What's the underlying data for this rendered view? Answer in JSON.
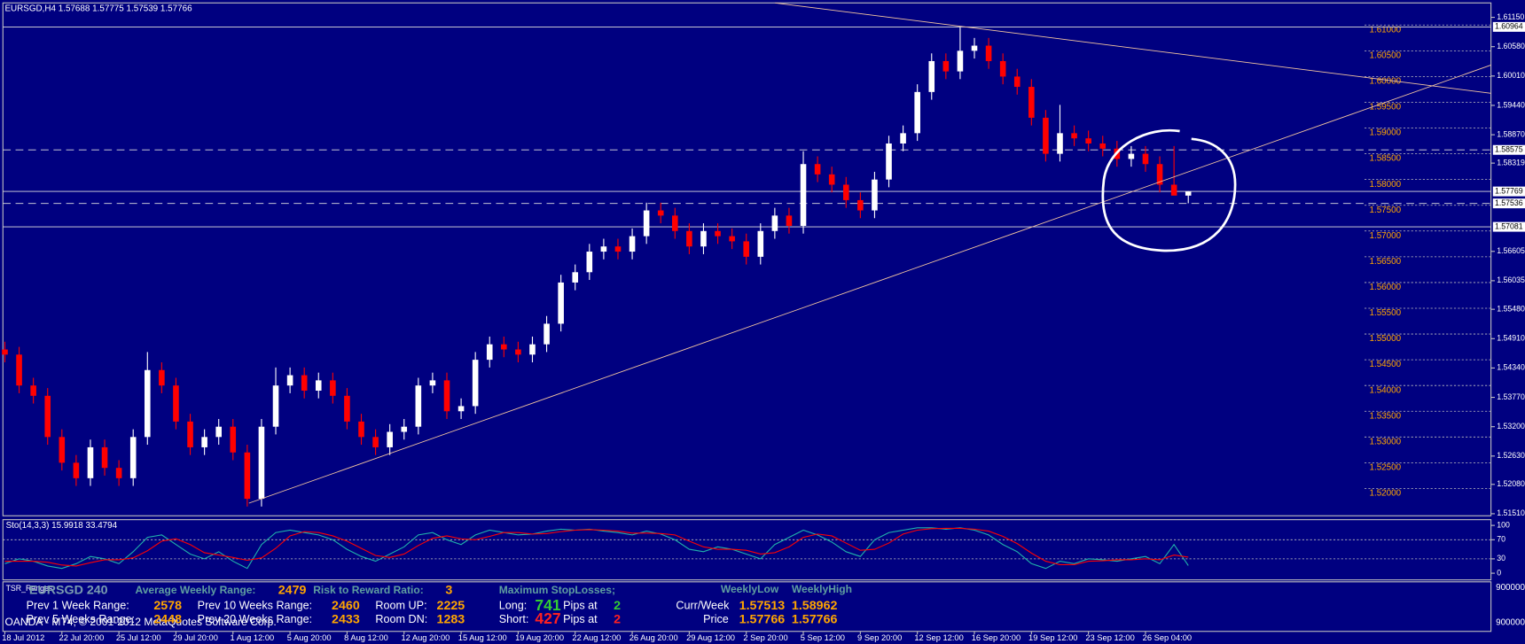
{
  "chart_data": [
    {
      "type": "candlestick",
      "title": "EURSGD,H4  1.57688 1.57775 1.57539 1.57766",
      "up_color": "#ffffff",
      "down_color": "#ff0000",
      "categories": [
        "18 Jul 2012",
        null,
        null,
        null,
        "22 Jul 20:00",
        null,
        null,
        null,
        "25 Jul 12:00",
        null,
        null,
        null,
        "29 Jul 20:00",
        null,
        null,
        null,
        "1 Aug 12:00",
        null,
        null,
        null,
        "5 Aug 20:00",
        null,
        null,
        null,
        "8 Aug 12:00",
        null,
        null,
        null,
        "12 Aug 20:00",
        null,
        null,
        null,
        "15 Aug 12:00",
        null,
        null,
        null,
        "19 Aug 20:00",
        null,
        null,
        null,
        "22 Aug 12:00",
        null,
        null,
        null,
        "26 Aug 20:00",
        null,
        null,
        null,
        "29 Aug 12:00",
        null,
        null,
        null,
        "2 Sep 20:00",
        null,
        null,
        null,
        "5 Sep 12:00",
        null,
        null,
        null,
        "9 Sep 20:00",
        null,
        null,
        null,
        "12 Sep 12:00",
        null,
        null,
        null,
        "16 Sep 20:00",
        null,
        null,
        null,
        "19 Sep 12:00",
        null,
        null,
        null,
        "23 Sep 12:00",
        null,
        null,
        null,
        "26 Sep 04:00",
        null,
        null,
        null
      ],
      "ohlc": [
        [
          1.547,
          1.5485,
          1.5445,
          1.546
        ],
        [
          1.546,
          1.5475,
          1.5385,
          1.54
        ],
        [
          1.54,
          1.5415,
          1.5365,
          1.538
        ],
        [
          1.538,
          1.5395,
          1.5285,
          1.53
        ],
        [
          1.53,
          1.5315,
          1.5235,
          1.525
        ],
        [
          1.525,
          1.5265,
          1.5205,
          1.522
        ],
        [
          1.522,
          1.5295,
          1.5205,
          1.528
        ],
        [
          1.528,
          1.5295,
          1.5225,
          1.524
        ],
        [
          1.524,
          1.5255,
          1.5205,
          1.522
        ],
        [
          1.522,
          1.5315,
          1.5205,
          1.53
        ],
        [
          1.53,
          1.5465,
          1.5285,
          1.543
        ],
        [
          1.543,
          1.5445,
          1.5385,
          1.54
        ],
        [
          1.54,
          1.5415,
          1.5315,
          1.533
        ],
        [
          1.533,
          1.5345,
          1.5265,
          1.528
        ],
        [
          1.528,
          1.5315,
          1.5265,
          1.53
        ],
        [
          1.53,
          1.5335,
          1.5285,
          1.532
        ],
        [
          1.532,
          1.5335,
          1.5255,
          1.527
        ],
        [
          1.527,
          1.5285,
          1.5165,
          1.518
        ],
        [
          1.518,
          1.5335,
          1.5165,
          1.532
        ],
        [
          1.532,
          1.5435,
          1.5305,
          1.54
        ],
        [
          1.54,
          1.5435,
          1.5385,
          1.542
        ],
        [
          1.542,
          1.5435,
          1.5375,
          1.539
        ],
        [
          1.539,
          1.5425,
          1.5375,
          1.541
        ],
        [
          1.541,
          1.5425,
          1.5365,
          1.538
        ],
        [
          1.538,
          1.5395,
          1.5315,
          1.533
        ],
        [
          1.533,
          1.5345,
          1.5285,
          1.53
        ],
        [
          1.53,
          1.5315,
          1.5265,
          1.528
        ],
        [
          1.528,
          1.5325,
          1.5265,
          1.531
        ],
        [
          1.531,
          1.5335,
          1.5295,
          1.532
        ],
        [
          1.532,
          1.5415,
          1.5305,
          1.54
        ],
        [
          1.54,
          1.5425,
          1.5385,
          1.541
        ],
        [
          1.541,
          1.5425,
          1.5335,
          1.535
        ],
        [
          1.535,
          1.5375,
          1.5335,
          1.536
        ],
        [
          1.536,
          1.5465,
          1.5345,
          1.545
        ],
        [
          1.545,
          1.5495,
          1.5435,
          1.548
        ],
        [
          1.548,
          1.5495,
          1.5455,
          1.547
        ],
        [
          1.547,
          1.5485,
          1.5445,
          1.546
        ],
        [
          1.546,
          1.5495,
          1.5445,
          1.548
        ],
        [
          1.548,
          1.5535,
          1.5465,
          1.552
        ],
        [
          1.552,
          1.5615,
          1.5505,
          1.56
        ],
        [
          1.56,
          1.5635,
          1.5585,
          1.562
        ],
        [
          1.562,
          1.5675,
          1.5605,
          1.566
        ],
        [
          1.566,
          1.5685,
          1.5645,
          1.567
        ],
        [
          1.567,
          1.5685,
          1.5645,
          1.566
        ],
        [
          1.566,
          1.5705,
          1.5645,
          1.569
        ],
        [
          1.569,
          1.5755,
          1.5675,
          1.574
        ],
        [
          1.574,
          1.5755,
          1.5715,
          1.573
        ],
        [
          1.573,
          1.5745,
          1.5685,
          1.57
        ],
        [
          1.57,
          1.5715,
          1.5655,
          1.567
        ],
        [
          1.567,
          1.5715,
          1.5655,
          1.57
        ],
        [
          1.57,
          1.5715,
          1.5675,
          1.569
        ],
        [
          1.569,
          1.5705,
          1.5665,
          1.568
        ],
        [
          1.568,
          1.5695,
          1.5635,
          1.565
        ],
        [
          1.565,
          1.5715,
          1.5635,
          1.57
        ],
        [
          1.57,
          1.5745,
          1.5685,
          1.573
        ],
        [
          1.573,
          1.5745,
          1.5695,
          1.571
        ],
        [
          1.571,
          1.5855,
          1.5695,
          1.583
        ],
        [
          1.583,
          1.5845,
          1.5795,
          1.581
        ],
        [
          1.581,
          1.5825,
          1.5775,
          1.579
        ],
        [
          1.579,
          1.5805,
          1.5745,
          1.576
        ],
        [
          1.576,
          1.5775,
          1.5725,
          1.574
        ],
        [
          1.574,
          1.5815,
          1.5725,
          1.58
        ],
        [
          1.58,
          1.5885,
          1.5785,
          1.587
        ],
        [
          1.587,
          1.5905,
          1.5855,
          1.589
        ],
        [
          1.589,
          1.5985,
          1.5875,
          1.597
        ],
        [
          1.597,
          1.6045,
          1.5955,
          1.603
        ],
        [
          1.603,
          1.6045,
          1.5995,
          1.601
        ],
        [
          1.601,
          1.6096,
          1.5995,
          1.605
        ],
        [
          1.605,
          1.6075,
          1.6035,
          1.606
        ],
        [
          1.606,
          1.6075,
          1.6015,
          1.603
        ],
        [
          1.603,
          1.6045,
          1.5985,
          1.6
        ],
        [
          1.6,
          1.6015,
          1.5965,
          1.598
        ],
        [
          1.598,
          1.5995,
          1.5905,
          1.592
        ],
        [
          1.592,
          1.5935,
          1.5835,
          1.585
        ],
        [
          1.585,
          1.5945,
          1.5835,
          1.589
        ],
        [
          1.589,
          1.5905,
          1.5865,
          1.588
        ],
        [
          1.588,
          1.5895,
          1.5855,
          1.587
        ],
        [
          1.587,
          1.5885,
          1.5845,
          1.586
        ],
        [
          1.586,
          1.5875,
          1.5825,
          1.584
        ],
        [
          1.584,
          1.5865,
          1.5825,
          1.585
        ],
        [
          1.585,
          1.5865,
          1.5815,
          1.583
        ],
        [
          1.583,
          1.5845,
          1.5775,
          1.579
        ],
        [
          1.579,
          1.5865,
          1.5775,
          1.57688
        ],
        [
          1.57688,
          1.57775,
          1.57539,
          1.57766
        ]
      ],
      "ylim": [
        1.5147,
        1.6143
      ],
      "yticks": [
        {
          "value": 1.6115,
          "label": "1.61150"
        },
        {
          "value": 1.6058,
          "label": "1.60580"
        },
        {
          "value": 1.6001,
          "label": "1.60010"
        },
        {
          "value": 1.5944,
          "label": "1.59440"
        },
        {
          "value": 1.5887,
          "label": "1.58870"
        },
        {
          "value": 1.58319,
          "label": "1.58319"
        },
        {
          "value": 1.56605,
          "label": "1.56605"
        },
        {
          "value": 1.56035,
          "label": "1.56035"
        },
        {
          "value": 1.5548,
          "label": "1.55480"
        },
        {
          "value": 1.5491,
          "label": "1.54910"
        },
        {
          "value": 1.5434,
          "label": "1.54340"
        },
        {
          "value": 1.5377,
          "label": "1.53770"
        },
        {
          "value": 1.532,
          "label": "1.53200"
        },
        {
          "value": 1.5263,
          "label": "1.52630"
        },
        {
          "value": 1.5208,
          "label": "1.52080"
        },
        {
          "value": 1.5151,
          "label": "1.51510"
        }
      ],
      "levels": [
        {
          "value": 1.61,
          "label": "1.61000"
        },
        {
          "value": 1.605,
          "label": "1.60500"
        },
        {
          "value": 1.6,
          "label": "1.60000"
        },
        {
          "value": 1.595,
          "label": "1.59500"
        },
        {
          "value": 1.59,
          "label": "1.59000"
        },
        {
          "value": 1.585,
          "label": "1.58500"
        },
        {
          "value": 1.58,
          "label": "1.58000"
        },
        {
          "value": 1.575,
          "label": "1.57500"
        },
        {
          "value": 1.57,
          "label": "1.57000"
        },
        {
          "value": 1.565,
          "label": "1.56500"
        },
        {
          "value": 1.56,
          "label": "1.56000"
        },
        {
          "value": 1.555,
          "label": "1.55500"
        },
        {
          "value": 1.55,
          "label": "1.55000"
        },
        {
          "value": 1.545,
          "label": "1.54500"
        },
        {
          "value": 1.54,
          "label": "1.54000"
        },
        {
          "value": 1.535,
          "label": "1.53500"
        },
        {
          "value": 1.53,
          "label": "1.53000"
        },
        {
          "value": 1.525,
          "label": "1.52500"
        },
        {
          "value": 1.52,
          "label": "1.52000"
        }
      ],
      "hlines_solid": [
        1.60964,
        1.57769,
        1.57081
      ],
      "hlines_dashed": [
        1.58575,
        1.57536
      ],
      "price_labels": [
        {
          "value": 1.60964,
          "label": "1.60964"
        },
        {
          "value": 1.58575,
          "label": "1.58575"
        },
        {
          "value": 1.57769,
          "label": "1.57769"
        },
        {
          "value": 1.57536,
          "label": "1.57536"
        },
        {
          "value": 1.57081,
          "label": "1.57081"
        }
      ]
    },
    {
      "type": "line",
      "title": "Sto(14,3,3) 15.9918 33.4794",
      "ylim": [
        -14,
        112
      ],
      "yticks": [
        100,
        70,
        30,
        0
      ],
      "levels": [
        70,
        30
      ],
      "series": [
        {
          "color": "#20b2aa",
          "values": [
            20,
            30,
            25,
            15,
            10,
            20,
            35,
            30,
            20,
            45,
            75,
            80,
            60,
            40,
            30,
            45,
            25,
            10,
            60,
            85,
            90,
            85,
            80,
            70,
            50,
            35,
            25,
            40,
            55,
            80,
            85,
            70,
            60,
            80,
            90,
            85,
            80,
            82,
            88,
            92,
            90,
            92,
            88,
            85,
            80,
            88,
            82,
            70,
            50,
            45,
            55,
            50,
            40,
            30,
            60,
            75,
            90,
            80,
            65,
            45,
            35,
            70,
            85,
            90,
            95,
            95,
            92,
            95,
            90,
            80,
            60,
            45,
            20,
            10,
            25,
            20,
            30,
            28,
            25,
            30,
            35,
            20,
            60,
            15.9918
          ]
        },
        {
          "color": "#ff0000",
          "values": [
            25,
            25,
            25,
            23,
            17,
            15,
            22,
            28,
            28,
            32,
            47,
            67,
            72,
            60,
            43,
            38,
            33,
            27,
            32,
            52,
            78,
            87,
            85,
            78,
            67,
            52,
            37,
            33,
            40,
            58,
            73,
            78,
            72,
            70,
            77,
            85,
            85,
            82,
            83,
            87,
            90,
            91,
            90,
            88,
            84,
            84,
            83,
            80,
            67,
            55,
            50,
            50,
            48,
            40,
            43,
            55,
            75,
            82,
            78,
            63,
            48,
            50,
            63,
            82,
            90,
            93,
            94,
            94,
            92,
            88,
            77,
            62,
            42,
            25,
            18,
            18,
            25,
            26,
            28,
            28,
            30,
            28,
            38,
            33.4794
          ]
        }
      ]
    }
  ],
  "panel": {
    "indicator": "TSR_Ranges",
    "axis_labels": [
      "900000",
      "900000"
    ],
    "items": [
      "EURSGD 240",
      "Average Weekly Range:",
      "2479",
      "Risk to Reward Ratio:",
      "3",
      "Maximum StopLosses;",
      "WeeklyLow",
      "WeeklyHigh",
      "Prev 1 Week Range:",
      "2578",
      "Prev 10 Weeks Range:",
      "2460",
      "Room UP:",
      "2225",
      "Long:",
      "741",
      "Pips at",
      "2",
      "Curr/Week",
      "1.57513",
      "1.58962",
      "Prev 5 Weeks Range:",
      "2448",
      "Prev 20 Weeks Range:",
      "2433",
      "Room DN:",
      "1283",
      "Short:",
      "427",
      "Pips at",
      "2",
      "Price",
      "1.57766",
      "1.57766"
    ],
    "copyright": "OANDA - MT4, © 2001-2012 MetaQuotes Software Corp."
  }
}
